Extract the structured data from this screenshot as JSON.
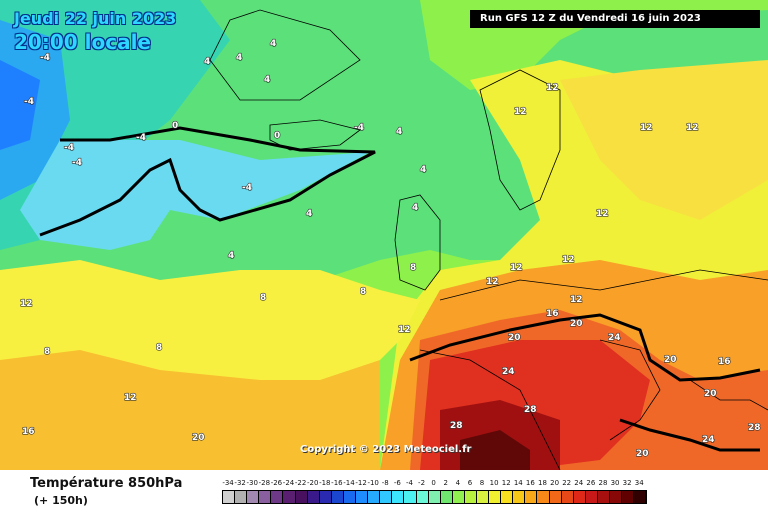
{
  "header": {
    "date_line1": "Jeudi 22 juin 2023",
    "date_line2": "20:00 locale",
    "run_info": "Run GFS 12 Z du Vendredi 16 juin 2023"
  },
  "copyright": "Copyright © 2023 Meteociel.fr",
  "legend": {
    "title": "Température 850hPa",
    "subtitle": "(+ 150h)",
    "scale_ticks": [
      "-34",
      "-32",
      "-30",
      "-28",
      "-26",
      "-24",
      "-22",
      "-20",
      "-18",
      "-16",
      "-14",
      "-12",
      "-10",
      "-8",
      "-6",
      "-4",
      "-2",
      "0",
      "2",
      "4",
      "6",
      "8",
      "10",
      "12",
      "14",
      "16",
      "18",
      "20",
      "22",
      "24",
      "26",
      "28",
      "30",
      "32",
      "34"
    ],
    "scale_colors": [
      "#d0d0d0",
      "#b0b0b0",
      "#a088b0",
      "#8a5fa0",
      "#6e3a88",
      "#5a1f70",
      "#4a1060",
      "#3a1a8a",
      "#2a2ab0",
      "#1a46d0",
      "#1a6af0",
      "#1e8cff",
      "#26aaff",
      "#30c8ff",
      "#3ce4ff",
      "#4cf0f0",
      "#6af8d8",
      "#80f0b0",
      "#70e870",
      "#90f050",
      "#b8f040",
      "#d8f040",
      "#f0f030",
      "#f8e020",
      "#f8c818",
      "#f8a818",
      "#f88818",
      "#f06818",
      "#e84818",
      "#e02818",
      "#c81818",
      "#a81010",
      "#880808",
      "#600000",
      "#300000"
    ]
  },
  "map_labels": [
    {
      "text": "-4"
    },
    {
      "text": "-4"
    },
    {
      "text": "-4"
    },
    {
      "text": "-4"
    },
    {
      "text": "-4"
    },
    {
      "text": "-4"
    },
    {
      "text": "-4"
    },
    {
      "text": "0"
    },
    {
      "text": "0"
    },
    {
      "text": "4"
    },
    {
      "text": "4"
    },
    {
      "text": "4"
    },
    {
      "text": "4"
    },
    {
      "text": "4"
    },
    {
      "text": "4"
    },
    {
      "text": "4"
    },
    {
      "text": "4"
    },
    {
      "text": "4"
    },
    {
      "text": "8"
    },
    {
      "text": "8"
    },
    {
      "text": "8"
    },
    {
      "text": "8"
    },
    {
      "text": "8"
    },
    {
      "text": "12"
    },
    {
      "text": "12"
    },
    {
      "text": "12"
    },
    {
      "text": "12"
    },
    {
      "text": "12"
    },
    {
      "text": "12"
    },
    {
      "text": "12"
    },
    {
      "text": "12"
    },
    {
      "text": "12"
    },
    {
      "text": "12"
    },
    {
      "text": "12"
    },
    {
      "text": "12"
    },
    {
      "text": "16"
    },
    {
      "text": "16"
    },
    {
      "text": "16"
    },
    {
      "text": "20"
    },
    {
      "text": "20"
    },
    {
      "text": "20"
    },
    {
      "text": "20"
    },
    {
      "text": "20"
    },
    {
      "text": "20"
    },
    {
      "text": "24"
    },
    {
      "text": "24"
    },
    {
      "text": "24"
    },
    {
      "text": "28"
    },
    {
      "text": "28"
    },
    {
      "text": "28"
    }
  ]
}
